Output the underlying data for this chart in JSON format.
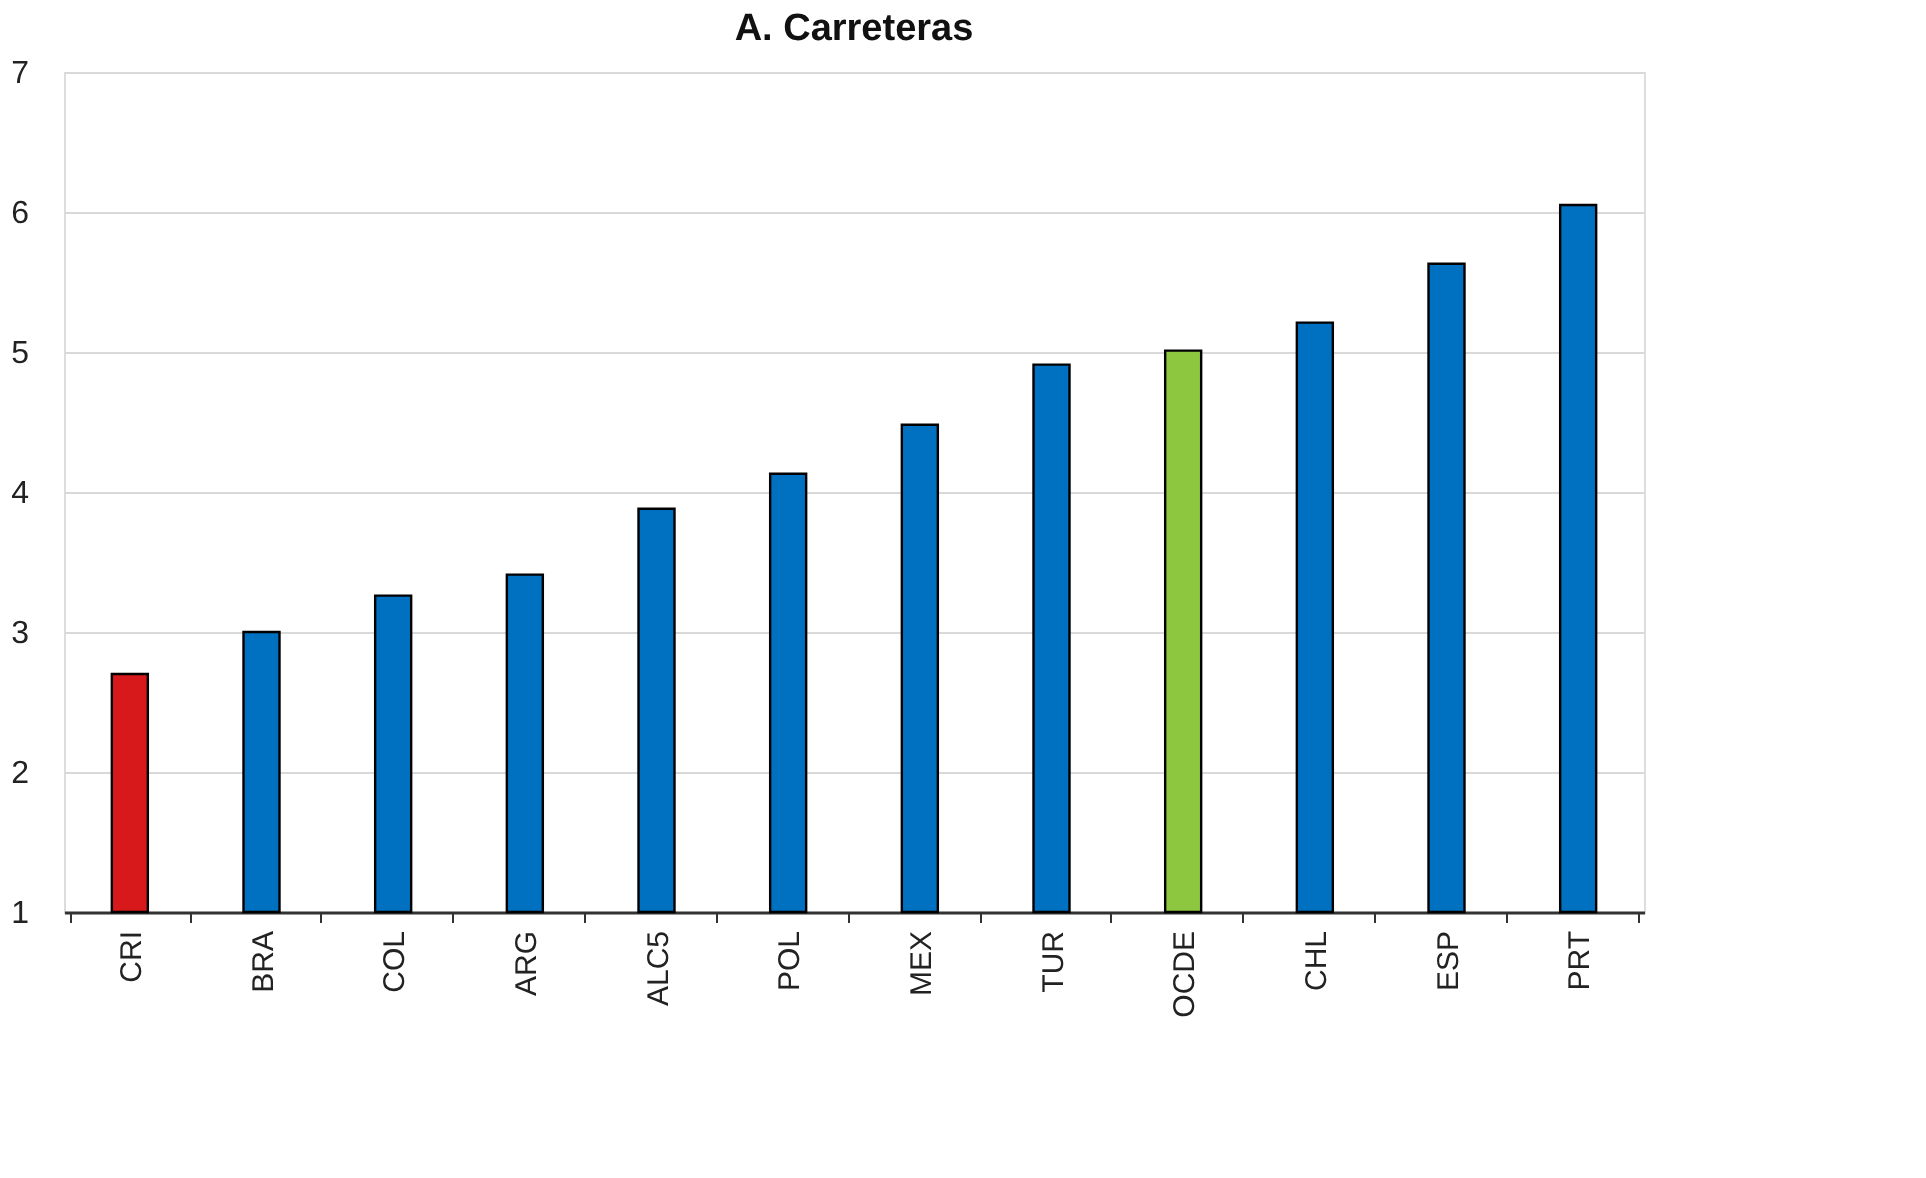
{
  "chart_data": {
    "type": "bar",
    "title": "A. Carreteras",
    "categories": [
      "CRI",
      "BRA",
      "COL",
      "ARG",
      "ALC5",
      "POL",
      "MEX",
      "TUR",
      "OCDE",
      "CHL",
      "ESP",
      "PRT"
    ],
    "values": [
      2.7,
      3.0,
      3.26,
      3.41,
      3.88,
      4.13,
      4.48,
      4.91,
      5.01,
      5.21,
      5.63,
      6.05
    ],
    "colors": [
      "#d7191c",
      "#0070c0",
      "#0070c0",
      "#0070c0",
      "#0070c0",
      "#0070c0",
      "#0070c0",
      "#0070c0",
      "#8dc63f",
      "#0070c0",
      "#0070c0",
      "#0070c0"
    ],
    "ylim": [
      1,
      7
    ],
    "yticks": [
      1,
      2,
      3,
      4,
      5,
      6,
      7
    ],
    "grid": "y"
  }
}
